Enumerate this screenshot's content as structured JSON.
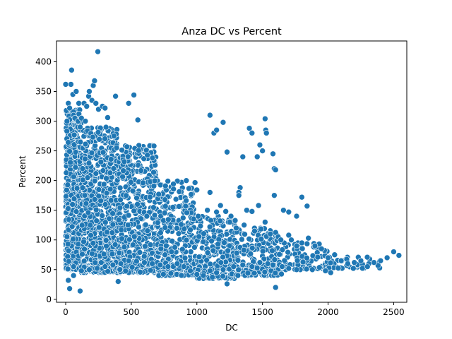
{
  "chart_data": {
    "type": "scatter",
    "title": "Anza DC vs Percent",
    "xlabel": "DC",
    "ylabel": "Percent",
    "xlim": [
      -70,
      2600
    ],
    "ylim": [
      -5,
      435
    ],
    "xticks": [
      0,
      500,
      1000,
      1500,
      2000,
      2500
    ],
    "yticks": [
      0,
      50,
      100,
      150,
      200,
      250,
      300,
      350,
      400
    ],
    "grid": false,
    "legend": "none",
    "marker_color": "#1f77b4",
    "marker_edge": "#ffffff",
    "series": [
      {
        "points": [
          [
            0,
            362
          ],
          [
            5,
            318
          ],
          [
            10,
            300
          ],
          [
            20,
            330
          ],
          [
            30,
            322
          ],
          [
            40,
            362
          ],
          [
            45,
            386
          ],
          [
            55,
            345
          ],
          [
            60,
            310
          ],
          [
            70,
            305
          ],
          [
            80,
            350
          ],
          [
            95,
            300
          ],
          [
            100,
            330
          ],
          [
            110,
            290
          ],
          [
            120,
            305
          ],
          [
            140,
            330
          ],
          [
            150,
            300
          ],
          [
            160,
            325
          ],
          [
            175,
            342
          ],
          [
            180,
            350
          ],
          [
            200,
            335
          ],
          [
            210,
            360
          ],
          [
            220,
            368
          ],
          [
            230,
            330
          ],
          [
            245,
            417
          ],
          [
            250,
            320
          ],
          [
            280,
            325
          ],
          [
            300,
            322
          ],
          [
            320,
            306
          ],
          [
            380,
            342
          ],
          [
            480,
            330
          ],
          [
            520,
            344
          ],
          [
            550,
            302
          ],
          [
            1100,
            310
          ],
          [
            1130,
            280
          ],
          [
            1150,
            285
          ],
          [
            1200,
            298
          ],
          [
            1400,
            288
          ],
          [
            1420,
            280
          ],
          [
            1520,
            304
          ],
          [
            1525,
            285
          ],
          [
            1530,
            280
          ],
          [
            1480,
            260
          ],
          [
            1460,
            240
          ],
          [
            1500,
            250
          ],
          [
            1580,
            245
          ],
          [
            1590,
            220
          ],
          [
            1600,
            218
          ],
          [
            1590,
            175
          ],
          [
            1230,
            248
          ],
          [
            1350,
            240
          ],
          [
            1330,
            188
          ],
          [
            1320,
            180
          ],
          [
            1320,
            175
          ],
          [
            1800,
            172
          ],
          [
            1840,
            157
          ],
          [
            1660,
            150
          ],
          [
            1700,
            147
          ],
          [
            1760,
            140
          ],
          [
            1100,
            180
          ],
          [
            1180,
            158
          ],
          [
            1080,
            150
          ],
          [
            1150,
            147
          ],
          [
            1220,
            148
          ],
          [
            1260,
            140
          ],
          [
            1380,
            150
          ],
          [
            1420,
            148
          ],
          [
            1470,
            158
          ],
          [
            1250,
            130
          ],
          [
            1300,
            120
          ],
          [
            1360,
            125
          ],
          [
            1440,
            115
          ],
          [
            1520,
            130
          ],
          [
            1560,
            110
          ],
          [
            1620,
            105
          ],
          [
            1640,
            100
          ],
          [
            1700,
            108
          ],
          [
            1720,
            100
          ],
          [
            1760,
            90
          ],
          [
            1800,
            95
          ],
          [
            1850,
            103
          ],
          [
            1900,
            90
          ],
          [
            1950,
            85
          ],
          [
            2000,
            70
          ],
          [
            2050,
            75
          ],
          [
            2100,
            65
          ],
          [
            2150,
            60
          ],
          [
            2200,
            62
          ],
          [
            2250,
            65
          ],
          [
            2300,
            55
          ],
          [
            2350,
            62
          ],
          [
            2400,
            65
          ],
          [
            2450,
            70
          ],
          [
            2500,
            80
          ],
          [
            2540,
            74
          ],
          [
            1600,
            20
          ],
          [
            110,
            14
          ],
          [
            30,
            18
          ],
          [
            20,
            32
          ],
          [
            60,
            40
          ],
          [
            400,
            30
          ],
          [
            1230,
            26
          ],
          [
            1980,
            48
          ],
          [
            2020,
            45
          ],
          [
            1880,
            50
          ],
          [
            1760,
            50
          ],
          [
            1700,
            52
          ],
          [
            1650,
            55
          ],
          [
            1580,
            58
          ],
          [
            1540,
            60
          ],
          [
            1480,
            62
          ],
          [
            1420,
            55
          ],
          [
            1350,
            58
          ],
          [
            1280,
            55
          ],
          [
            1200,
            50
          ],
          [
            1150,
            45
          ],
          [
            1100,
            48
          ],
          [
            1050,
            40
          ],
          [
            1000,
            42
          ],
          [
            950,
            48
          ],
          [
            900,
            55
          ],
          [
            850,
            60
          ],
          [
            780,
            55
          ],
          [
            720,
            58
          ],
          [
            660,
            60
          ],
          [
            600,
            62
          ],
          [
            540,
            64
          ],
          [
            480,
            65
          ],
          [
            420,
            60
          ],
          [
            360,
            58
          ],
          [
            300,
            55
          ],
          [
            240,
            52
          ],
          [
            180,
            50
          ],
          [
            120,
            48
          ],
          [
            60,
            55
          ]
        ],
        "clusters": [
          {
            "x_range": [
              0,
              120
            ],
            "y_range": [
              50,
              320
            ],
            "count": 650
          },
          {
            "x_range": [
              120,
              400
            ],
            "y_range": [
              45,
              290
            ],
            "count": 700
          },
          {
            "x_range": [
              400,
              700
            ],
            "y_range": [
              45,
              260
            ],
            "count": 500
          },
          {
            "x_range": [
              700,
              1000
            ],
            "y_range": [
              40,
              200
            ],
            "count": 360
          },
          {
            "x_range": [
              1000,
              1300
            ],
            "y_range": [
              35,
              140
            ],
            "count": 260
          },
          {
            "x_range": [
              1300,
              1650
            ],
            "y_range": [
              40,
              120
            ],
            "count": 200
          },
          {
            "x_range": [
              1650,
              2000
            ],
            "y_range": [
              50,
              95
            ],
            "count": 80
          },
          {
            "x_range": [
              2000,
              2400
            ],
            "y_range": [
              52,
              72
            ],
            "count": 40
          }
        ]
      }
    ]
  }
}
